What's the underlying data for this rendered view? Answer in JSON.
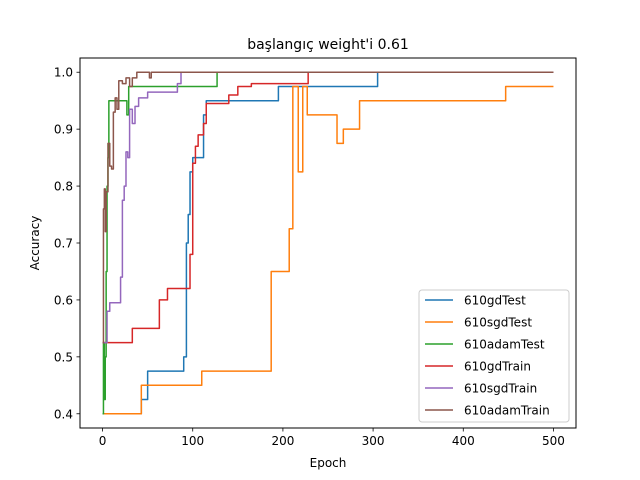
{
  "chart_data": {
    "type": "line",
    "title": "başlangıç weight'i 0.61",
    "xlabel": "Epoch",
    "ylabel": "Accuracy",
    "xlim": [
      -25,
      525
    ],
    "ylim": [
      0.375,
      1.025
    ],
    "xticks": [
      0,
      100,
      200,
      300,
      400,
      500
    ],
    "xtick_labels": [
      "0",
      "100",
      "200",
      "300",
      "400",
      "500"
    ],
    "yticks": [
      0.4,
      0.5,
      0.6,
      0.7,
      0.8,
      0.9,
      1.0
    ],
    "ytick_labels": [
      "0.4",
      "0.5",
      "0.6",
      "0.7",
      "0.8",
      "0.9",
      "1.0"
    ],
    "grid": false,
    "legend_position": "lower-right",
    "step": true,
    "series": [
      {
        "name": "610gdTest",
        "color": "#1f77b4",
        "points": [
          [
            0,
            0.4
          ],
          [
            43,
            0.4
          ],
          [
            43,
            0.425
          ],
          [
            50,
            0.425
          ],
          [
            50,
            0.475
          ],
          [
            90,
            0.475
          ],
          [
            90,
            0.5
          ],
          [
            93,
            0.5
          ],
          [
            93,
            0.7
          ],
          [
            95,
            0.7
          ],
          [
            95,
            0.75
          ],
          [
            97,
            0.75
          ],
          [
            97,
            0.825
          ],
          [
            100,
            0.825
          ],
          [
            100,
            0.85
          ],
          [
            112,
            0.85
          ],
          [
            112,
            0.925
          ],
          [
            115,
            0.925
          ],
          [
            115,
            0.95
          ],
          [
            195,
            0.95
          ],
          [
            195,
            0.975
          ],
          [
            305,
            0.975
          ],
          [
            305,
            1.0
          ],
          [
            500,
            1.0
          ]
        ]
      },
      {
        "name": "610sgdTest",
        "color": "#ff7f0e",
        "points": [
          [
            0,
            0.4
          ],
          [
            43,
            0.4
          ],
          [
            43,
            0.45
          ],
          [
            110,
            0.45
          ],
          [
            110,
            0.475
          ],
          [
            187,
            0.475
          ],
          [
            187,
            0.65
          ],
          [
            207,
            0.65
          ],
          [
            207,
            0.725
          ],
          [
            211,
            0.725
          ],
          [
            211,
            0.975
          ],
          [
            217,
            0.975
          ],
          [
            217,
            0.825
          ],
          [
            222,
            0.825
          ],
          [
            222,
            0.975
          ],
          [
            227,
            0.975
          ],
          [
            227,
            0.925
          ],
          [
            260,
            0.925
          ],
          [
            260,
            0.875
          ],
          [
            267,
            0.875
          ],
          [
            267,
            0.9
          ],
          [
            285,
            0.9
          ],
          [
            285,
            0.95
          ],
          [
            447,
            0.95
          ],
          [
            447,
            0.975
          ],
          [
            500,
            0.975
          ]
        ]
      },
      {
        "name": "610adamTest",
        "color": "#2ca02c",
        "points": [
          [
            0,
            0.4
          ],
          [
            1,
            0.4
          ],
          [
            1,
            0.525
          ],
          [
            2,
            0.525
          ],
          [
            2,
            0.425
          ],
          [
            3,
            0.425
          ],
          [
            3,
            0.5
          ],
          [
            4,
            0.5
          ],
          [
            4,
            0.65
          ],
          [
            5,
            0.65
          ],
          [
            5,
            0.8
          ],
          [
            6,
            0.8
          ],
          [
            6,
            0.85
          ],
          [
            7,
            0.85
          ],
          [
            7,
            0.95
          ],
          [
            27,
            0.95
          ],
          [
            27,
            0.925
          ],
          [
            29,
            0.925
          ],
          [
            29,
            0.975
          ],
          [
            127,
            0.975
          ],
          [
            127,
            1.0
          ],
          [
            500,
            1.0
          ]
        ]
      },
      {
        "name": "610gdTrain",
        "color": "#d62728",
        "points": [
          [
            0,
            0.525
          ],
          [
            33,
            0.525
          ],
          [
            33,
            0.55
          ],
          [
            63,
            0.55
          ],
          [
            63,
            0.6
          ],
          [
            72,
            0.6
          ],
          [
            72,
            0.62
          ],
          [
            97,
            0.62
          ],
          [
            97,
            0.68
          ],
          [
            100,
            0.68
          ],
          [
            100,
            0.84
          ],
          [
            103,
            0.84
          ],
          [
            103,
            0.87
          ],
          [
            106,
            0.87
          ],
          [
            106,
            0.89
          ],
          [
            112,
            0.89
          ],
          [
            112,
            0.91
          ],
          [
            115,
            0.91
          ],
          [
            115,
            0.945
          ],
          [
            140,
            0.945
          ],
          [
            140,
            0.96
          ],
          [
            150,
            0.96
          ],
          [
            150,
            0.975
          ],
          [
            165,
            0.975
          ],
          [
            165,
            0.98
          ],
          [
            228,
            0.98
          ],
          [
            228,
            1.0
          ],
          [
            500,
            1.0
          ]
        ]
      },
      {
        "name": "610sgdTrain",
        "color": "#9467bd",
        "points": [
          [
            0,
            0.525
          ],
          [
            5,
            0.525
          ],
          [
            5,
            0.58
          ],
          [
            8,
            0.58
          ],
          [
            8,
            0.595
          ],
          [
            20,
            0.595
          ],
          [
            20,
            0.64
          ],
          [
            22,
            0.64
          ],
          [
            22,
            0.775
          ],
          [
            24,
            0.775
          ],
          [
            24,
            0.8
          ],
          [
            26,
            0.8
          ],
          [
            26,
            0.86
          ],
          [
            28,
            0.86
          ],
          [
            28,
            0.85
          ],
          [
            30,
            0.85
          ],
          [
            30,
            0.935
          ],
          [
            33,
            0.935
          ],
          [
            33,
            0.91
          ],
          [
            36,
            0.91
          ],
          [
            36,
            0.94
          ],
          [
            40,
            0.94
          ],
          [
            40,
            0.955
          ],
          [
            50,
            0.955
          ],
          [
            50,
            0.965
          ],
          [
            83,
            0.965
          ],
          [
            83,
            0.98
          ],
          [
            87,
            0.98
          ],
          [
            87,
            1.0
          ],
          [
            500,
            1.0
          ]
        ]
      },
      {
        "name": "610adamTrain",
        "color": "#8c564b",
        "points": [
          [
            0,
            0.525
          ],
          [
            1,
            0.525
          ],
          [
            1,
            0.76
          ],
          [
            2,
            0.76
          ],
          [
            2,
            0.795
          ],
          [
            3,
            0.795
          ],
          [
            3,
            0.72
          ],
          [
            4,
            0.72
          ],
          [
            4,
            0.79
          ],
          [
            6,
            0.79
          ],
          [
            6,
            0.875
          ],
          [
            8,
            0.875
          ],
          [
            8,
            0.835
          ],
          [
            10,
            0.835
          ],
          [
            10,
            0.83
          ],
          [
            12,
            0.83
          ],
          [
            12,
            0.93
          ],
          [
            14,
            0.93
          ],
          [
            14,
            0.955
          ],
          [
            16,
            0.955
          ],
          [
            16,
            0.935
          ],
          [
            18,
            0.935
          ],
          [
            18,
            0.985
          ],
          [
            22,
            0.985
          ],
          [
            22,
            0.98
          ],
          [
            26,
            0.98
          ],
          [
            26,
            0.99
          ],
          [
            30,
            0.99
          ],
          [
            30,
            0.975
          ],
          [
            33,
            0.975
          ],
          [
            33,
            0.99
          ],
          [
            38,
            0.99
          ],
          [
            38,
            1.0
          ],
          [
            52,
            1.0
          ],
          [
            52,
            0.99
          ],
          [
            54,
            0.99
          ],
          [
            54,
            1.0
          ],
          [
            500,
            1.0
          ]
        ]
      }
    ]
  }
}
